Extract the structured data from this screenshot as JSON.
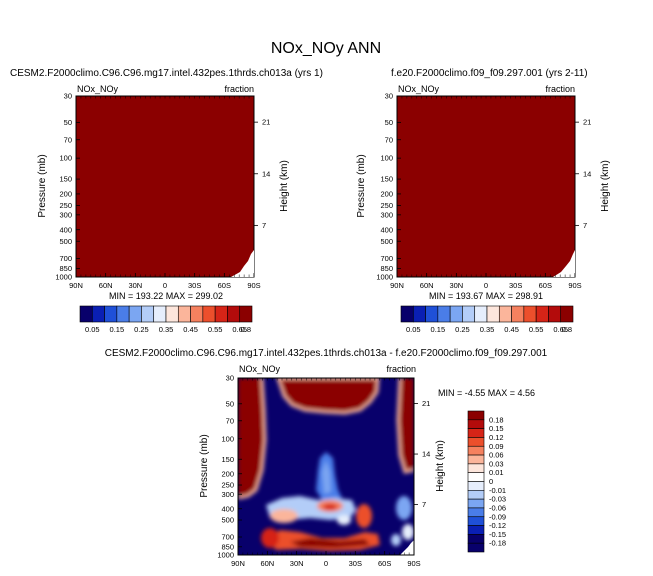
{
  "title": "NOx_NOy ANN",
  "panels": [
    {
      "case_title": "CESM2.F2000climo.C96.C96.mg17.intel.432pes.1thrds.ch013a (yrs 1)",
      "var_label": "NOx_NOy",
      "units_label": "fraction",
      "stats": "MIN = 193.22   MAX = 299.02",
      "fill_color": "#8b0000"
    },
    {
      "case_title": "f.e20.F2000climo.f09_f09.297.001 (yrs 2-11)",
      "var_label": "NOx_NOy",
      "units_label": "fraction",
      "stats": "MIN = 193.67   MAX = 298.91",
      "fill_color": "#8b0000"
    },
    {
      "case_title": "CESM2.F2000climo.C96.C96.mg17.intel.432pes.1thrds.ch013a - f.e20.F2000climo.f09_f09.297.001",
      "var_label": "NOx_NOy",
      "units_label": "fraction",
      "stats": "MIN = -4.55   MAX =  4.56"
    }
  ],
  "chart_data": [
    {
      "type": "heatmap",
      "name": "test-case",
      "xlabel": "",
      "ylabel": "Pressure (mb)",
      "y2label": "Height (km)",
      "x_ticks": [
        "90N",
        "60N",
        "30N",
        "0",
        "30S",
        "60S",
        "90S"
      ],
      "y_ticks": [
        "30",
        "50",
        "70",
        "100",
        "150",
        "200",
        "250",
        "300",
        "400",
        "500",
        "700",
        "850",
        "1000"
      ],
      "y2_ticks": [
        "21",
        "14",
        "7"
      ],
      "colorbar_labels": [
        "0.05",
        "0.15",
        "0.25",
        "0.35",
        "0.45",
        "0.55",
        "0.65",
        "0.8"
      ],
      "colorbar_colors": [
        "#08006b",
        "#0a1fb4",
        "#1f50d8",
        "#4a7de8",
        "#7ba6f2",
        "#b3cdf8",
        "#e6eefc",
        "#fde6dc",
        "#fbb59b",
        "#f5815f",
        "#ec4f2c",
        "#d62417",
        "#b30b0b",
        "#8b0000"
      ],
      "value_range": [
        0.05,
        0.8
      ]
    },
    {
      "type": "heatmap",
      "name": "control-case",
      "xlabel": "",
      "ylabel": "Pressure (mb)",
      "y2label": "Height (km)",
      "x_ticks": [
        "90N",
        "60N",
        "30N",
        "0",
        "30S",
        "60S",
        "90S"
      ],
      "y_ticks": [
        "30",
        "50",
        "70",
        "100",
        "150",
        "200",
        "250",
        "300",
        "400",
        "500",
        "700",
        "850",
        "1000"
      ],
      "y2_ticks": [
        "21",
        "14",
        "7"
      ],
      "colorbar_labels": [
        "0.05",
        "0.15",
        "0.25",
        "0.35",
        "0.45",
        "0.55",
        "0.65",
        "0.8"
      ],
      "colorbar_colors": [
        "#08006b",
        "#0a1fb4",
        "#1f50d8",
        "#4a7de8",
        "#7ba6f2",
        "#b3cdf8",
        "#e6eefc",
        "#fde6dc",
        "#fbb59b",
        "#f5815f",
        "#ec4f2c",
        "#d62417",
        "#b30b0b",
        "#8b0000"
      ],
      "value_range": [
        0.05,
        0.8
      ]
    },
    {
      "type": "heatmap",
      "name": "difference",
      "xlabel": "",
      "ylabel": "Pressure (mb)",
      "y2label": "Height (km)",
      "x_ticks": [
        "90N",
        "60N",
        "30N",
        "0",
        "30S",
        "60S",
        "90S"
      ],
      "y_ticks": [
        "30",
        "50",
        "70",
        "100",
        "150",
        "200",
        "250",
        "300",
        "400",
        "500",
        "700",
        "850",
        "1000"
      ],
      "y2_ticks": [
        "21",
        "14",
        "7"
      ],
      "colorbar_labels": [
        "0.18",
        "0.15",
        "0.12",
        "0.09",
        "0.06",
        "0.03",
        "0.01",
        "0",
        "-0.01",
        "-0.03",
        "-0.06",
        "-0.09",
        "-0.12",
        "-0.15",
        "-0.18"
      ],
      "colorbar_colors": [
        "#8b0000",
        "#b30b0b",
        "#d62417",
        "#ec4f2c",
        "#f5815f",
        "#fbb59b",
        "#fde6dc",
        "#ffffff",
        "#e6eefc",
        "#b3cdf8",
        "#7ba6f2",
        "#4a7de8",
        "#1f50d8",
        "#0a1fb4",
        "#08006b",
        "#08006b"
      ],
      "value_range": [
        -0.18,
        0.18
      ]
    }
  ]
}
